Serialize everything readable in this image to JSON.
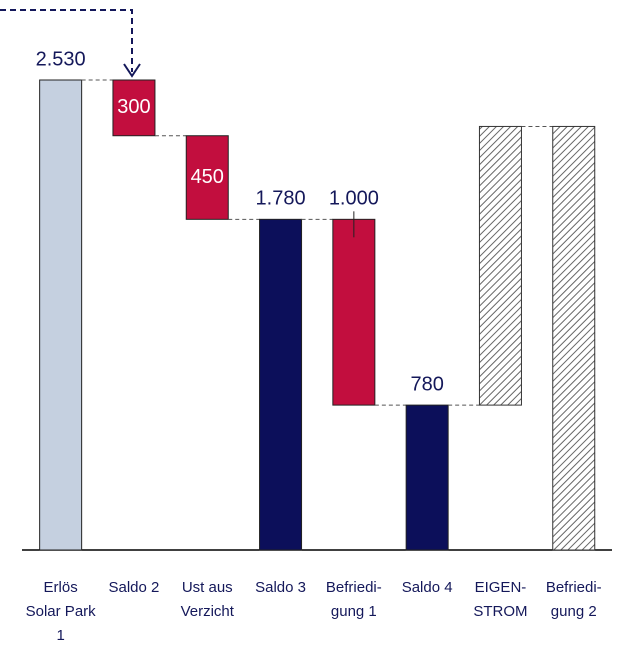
{
  "chart_data": {
    "type": "waterfall",
    "categories": [
      "Erlös Solar Park 1",
      "Saldo 2",
      "Ust aus Verzicht",
      "Saldo 3",
      "Befriedi-gung 1",
      "Saldo 4",
      "EIGEN-STROM",
      "Befriedi-gung 2"
    ],
    "values": [
      2530,
      300,
      450,
      1780,
      1000,
      780,
      1500,
      2280
    ],
    "measure": [
      "absolute",
      "decrease",
      "decrease",
      "absolute",
      "decrease",
      "absolute",
      "increase",
      "absolute"
    ],
    "value_labels": [
      "2.530",
      "300",
      "450",
      "1.780",
      "1.000",
      "780",
      null,
      null
    ],
    "colors": [
      "#c5d0e0",
      "#c20e3e",
      "#c20e3e",
      "#0c0f5a",
      "#c20e3e",
      "#0c0f5a",
      "hatch",
      "hatch"
    ],
    "ylim": [
      0,
      2530
    ]
  }
}
